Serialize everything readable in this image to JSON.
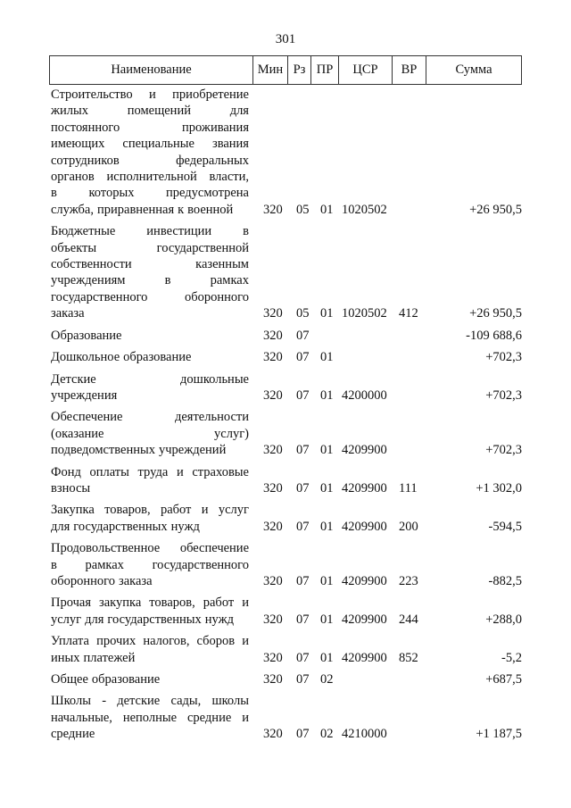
{
  "page_number": "301",
  "headers": [
    "Наименование",
    "Мин",
    "Рз",
    "ПР",
    "ЦСР",
    "ВР",
    "Сумма"
  ],
  "rows": [
    {
      "name_lines": [
        "Строительство и приобретение",
        "жилых помещений для",
        "постоянного проживания",
        "имеющих специальные звания",
        "сотрудников федеральных",
        "органов исполнительной власти,",
        "в которых предусмотрена",
        "служба, приравненная к военной"
      ],
      "min": "320",
      "rz": "05",
      "pr": "01",
      "csr": "1020502",
      "vr": "",
      "sum": "+26 950,5"
    },
    {
      "name_lines": [
        "Бюджетные инвестиции в",
        "объекты государственной",
        "собственности казенным",
        "учреждениям в рамках",
        "государственного оборонного",
        "заказа"
      ],
      "min": "320",
      "rz": "05",
      "pr": "01",
      "csr": "1020502",
      "vr": "412",
      "sum": "+26 950,5"
    },
    {
      "name_lines": [
        "Образование"
      ],
      "min": "320",
      "rz": "07",
      "pr": "",
      "csr": "",
      "vr": "",
      "sum": "-109 688,6"
    },
    {
      "name_lines": [
        "Дошкольное образование"
      ],
      "min": "320",
      "rz": "07",
      "pr": "01",
      "csr": "",
      "vr": "",
      "sum": "+702,3"
    },
    {
      "name_lines": [
        "Детские дошкольные",
        "учреждения"
      ],
      "min": "320",
      "rz": "07",
      "pr": "01",
      "csr": "4200000",
      "vr": "",
      "sum": "+702,3"
    },
    {
      "name_lines": [
        "Обеспечение деятельности",
        "(оказание услуг)",
        "подведомственных учреждений"
      ],
      "min": "320",
      "rz": "07",
      "pr": "01",
      "csr": "4209900",
      "vr": "",
      "sum": "+702,3"
    },
    {
      "name_lines": [
        "Фонд оплаты труда и страховые",
        "взносы"
      ],
      "min": "320",
      "rz": "07",
      "pr": "01",
      "csr": "4209900",
      "vr": "111",
      "sum": "+1 302,0"
    },
    {
      "name_lines": [
        "Закупка товаров, работ и услуг",
        "для государственных нужд"
      ],
      "min": "320",
      "rz": "07",
      "pr": "01",
      "csr": "4209900",
      "vr": "200",
      "sum": "-594,5"
    },
    {
      "name_lines": [
        "Продовольственное обеспечение",
        "в рамках государственного",
        "оборонного заказа"
      ],
      "min": "320",
      "rz": "07",
      "pr": "01",
      "csr": "4209900",
      "vr": "223",
      "sum": "-882,5"
    },
    {
      "name_lines": [
        "Прочая закупка товаров, работ и",
        "услуг для государственных нужд"
      ],
      "min": "320",
      "rz": "07",
      "pr": "01",
      "csr": "4209900",
      "vr": "244",
      "sum": "+288,0"
    },
    {
      "name_lines": [
        "Уплата прочих налогов, сборов и",
        "иных платежей"
      ],
      "min": "320",
      "rz": "07",
      "pr": "01",
      "csr": "4209900",
      "vr": "852",
      "sum": "-5,2"
    },
    {
      "name_lines": [
        "Общее образование"
      ],
      "min": "320",
      "rz": "07",
      "pr": "02",
      "csr": "",
      "vr": "",
      "sum": "+687,5"
    },
    {
      "name_lines": [
        "Школы - детские сады, школы",
        "начальные, неполные средние и",
        "средние"
      ],
      "min": "320",
      "rz": "07",
      "pr": "02",
      "csr": "4210000",
      "vr": "",
      "sum": "+1 187,5"
    }
  ]
}
